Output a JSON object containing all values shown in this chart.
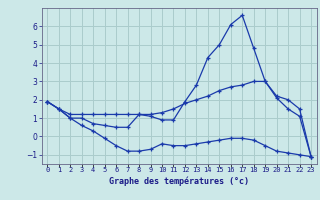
{
  "background_color": "#cce8e8",
  "grid_color": "#aacccc",
  "line_color": "#1a3aab",
  "x_hours": [
    0,
    1,
    2,
    3,
    4,
    5,
    6,
    7,
    8,
    9,
    10,
    11,
    12,
    13,
    14,
    15,
    16,
    17,
    18,
    19,
    20,
    21,
    22,
    23
  ],
  "line1": [
    1.9,
    1.5,
    1.0,
    1.0,
    0.7,
    0.6,
    0.5,
    0.5,
    1.2,
    1.1,
    0.9,
    0.9,
    1.9,
    2.8,
    4.3,
    5.0,
    6.1,
    6.6,
    4.8,
    3.0,
    2.1,
    1.5,
    1.1,
    -1.1
  ],
  "line2": [
    1.9,
    1.5,
    1.2,
    1.2,
    1.2,
    1.2,
    1.2,
    1.2,
    1.2,
    1.2,
    1.3,
    1.5,
    1.8,
    2.0,
    2.2,
    2.5,
    2.7,
    2.8,
    3.0,
    3.0,
    2.2,
    2.0,
    1.5,
    -1.1
  ],
  "line3": [
    1.9,
    1.5,
    1.0,
    0.6,
    0.3,
    -0.1,
    -0.5,
    -0.8,
    -0.8,
    -0.7,
    -0.4,
    -0.5,
    -0.5,
    -0.4,
    -0.3,
    -0.2,
    -0.1,
    -0.1,
    -0.2,
    -0.5,
    -0.8,
    -0.9,
    -1.0,
    -1.1
  ],
  "ylim": [
    -1.5,
    7.0
  ],
  "yticks": [
    -1,
    0,
    1,
    2,
    3,
    4,
    5,
    6
  ],
  "xlabel": "Graphe des températures (°c)"
}
